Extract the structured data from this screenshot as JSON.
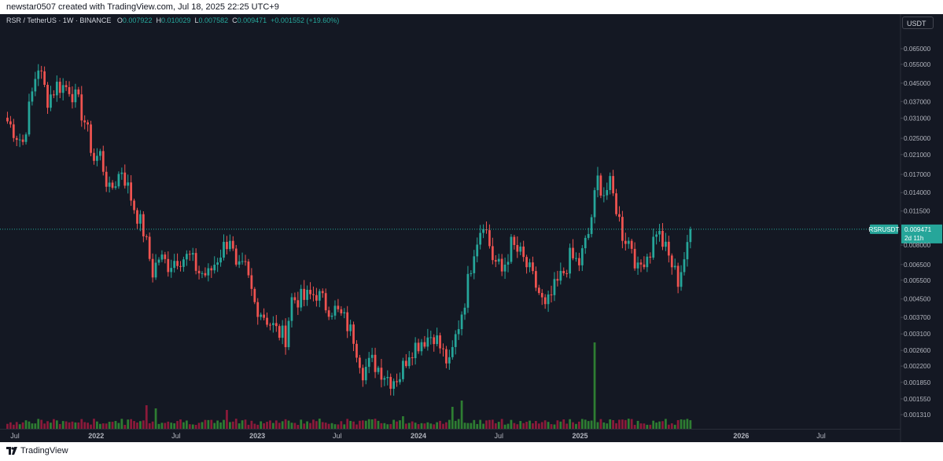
{
  "header": {
    "text": "newstar0507 created with TradingView.com, Jul 18, 2025 22:25 UTC+9"
  },
  "legend": {
    "symbol": "RSR / TetherUS · 1W · BINANCE",
    "o_label": "O",
    "o": "0.007922",
    "h_label": "H",
    "h": "0.010029",
    "l_label": "L",
    "l": "0.007582",
    "c_label": "C",
    "c": "0.009471",
    "change": "+0.001552 (+19.60%)"
  },
  "currency_button": "USDT",
  "last_price": {
    "ticker": "RSRUSDT",
    "price": "0.009471",
    "countdown": "2d 11h"
  },
  "footer": {
    "brand": "TradingView"
  },
  "colors": {
    "up": "#26a69a",
    "down": "#ef5350",
    "background": "#141823",
    "vol_up": "#2e7d32",
    "vol_down": "#8b1a3a"
  },
  "chart_data": {
    "type": "candlestick",
    "interval": "1W",
    "y_scale": "log",
    "y_ticks": [
      "0.065000",
      "0.055000",
      "0.045000",
      "0.037000",
      "0.031000",
      "0.025000",
      "0.021000",
      "0.017000",
      "0.014000",
      "0.011500",
      "0.008000",
      "0.006500",
      "0.005500",
      "0.004500",
      "0.003700",
      "0.003100",
      "0.002600",
      "0.002200",
      "0.001850",
      "0.001550",
      "0.001310"
    ],
    "x_ticks": [
      "Jul",
      "2022",
      "Jul",
      "2023",
      "Jul",
      "2024",
      "Jul",
      "2025",
      "2026",
      "Jul"
    ],
    "x_tick_dates": [
      "2021-07-01",
      "2022-01-01",
      "2022-07-01",
      "2023-01-01",
      "2023-07-01",
      "2024-01-01",
      "2024-07-01",
      "2025-01-01",
      "2026-01-01",
      "2026-07-01"
    ],
    "last_close": 0.009471,
    "path": [
      [
        "2021-06-14",
        0.03
      ],
      [
        "2021-07-05",
        0.026
      ],
      [
        "2021-07-19",
        0.024
      ],
      [
        "2021-08-02",
        0.034
      ],
      [
        "2021-08-16",
        0.048
      ],
      [
        "2021-08-23",
        0.054
      ],
      [
        "2021-08-30",
        0.048
      ],
      [
        "2021-09-13",
        0.038
      ],
      [
        "2021-10-04",
        0.044
      ],
      [
        "2021-11-01",
        0.043
      ],
      [
        "2021-11-22",
        0.036
      ],
      [
        "2021-12-06",
        0.03
      ],
      [
        "2021-12-27",
        0.02
      ],
      [
        "2022-01-10",
        0.021
      ],
      [
        "2022-01-31",
        0.014
      ],
      [
        "2022-02-28",
        0.018
      ],
      [
        "2022-03-28",
        0.012
      ],
      [
        "2022-04-18",
        0.0093
      ],
      [
        "2022-05-09",
        0.006
      ],
      [
        "2022-05-23",
        0.007
      ],
      [
        "2022-06-13",
        0.0065
      ],
      [
        "2022-07-04",
        0.007
      ],
      [
        "2022-08-01",
        0.007
      ],
      [
        "2022-08-22",
        0.006
      ],
      [
        "2022-09-12",
        0.0058
      ],
      [
        "2022-10-03",
        0.007
      ],
      [
        "2022-10-31",
        0.0088
      ],
      [
        "2022-11-14",
        0.006
      ],
      [
        "2022-12-05",
        0.0062
      ],
      [
        "2022-12-26",
        0.0043
      ],
      [
        "2023-01-16",
        0.0038
      ],
      [
        "2023-02-13",
        0.0032
      ],
      [
        "2023-03-06",
        0.003
      ],
      [
        "2023-03-20",
        0.0045
      ],
      [
        "2023-04-17",
        0.0045
      ],
      [
        "2023-05-15",
        0.0048
      ],
      [
        "2023-06-05",
        0.0042
      ],
      [
        "2023-06-26",
        0.004
      ],
      [
        "2023-07-17",
        0.0036
      ],
      [
        "2023-08-07",
        0.003
      ],
      [
        "2023-08-28",
        0.0021
      ],
      [
        "2023-09-18",
        0.0023
      ],
      [
        "2023-10-09",
        0.0021
      ],
      [
        "2023-10-30",
        0.0019
      ],
      [
        "2023-11-20",
        0.002
      ],
      [
        "2023-12-11",
        0.0026
      ],
      [
        "2024-01-08",
        0.0029
      ],
      [
        "2024-02-05",
        0.0031
      ],
      [
        "2024-02-26",
        0.0025
      ],
      [
        "2024-03-11",
        0.0022
      ],
      [
        "2024-03-25",
        0.003
      ],
      [
        "2024-04-15",
        0.0045
      ],
      [
        "2024-05-06",
        0.0078
      ],
      [
        "2024-05-27",
        0.0105
      ],
      [
        "2024-06-17",
        0.007
      ],
      [
        "2024-07-08",
        0.006
      ],
      [
        "2024-07-29",
        0.008
      ],
      [
        "2024-08-19",
        0.0072
      ],
      [
        "2024-09-09",
        0.006
      ],
      [
        "2024-09-30",
        0.0048
      ],
      [
        "2024-10-14",
        0.004
      ],
      [
        "2024-11-04",
        0.005
      ],
      [
        "2024-11-25",
        0.006
      ],
      [
        "2024-12-09",
        0.007
      ],
      [
        "2024-12-30",
        0.0066
      ],
      [
        "2025-01-20",
        0.009
      ],
      [
        "2025-02-10",
        0.016
      ],
      [
        "2025-02-24",
        0.014
      ],
      [
        "2025-03-10",
        0.015
      ],
      [
        "2025-03-24",
        0.012
      ],
      [
        "2025-04-07",
        0.009
      ],
      [
        "2025-04-28",
        0.008
      ],
      [
        "2025-05-12",
        0.006
      ],
      [
        "2025-05-26",
        0.007
      ],
      [
        "2025-06-09",
        0.0075
      ],
      [
        "2025-06-23",
        0.0095
      ],
      [
        "2025-07-07",
        0.0082
      ],
      [
        "2025-07-21",
        0.007
      ],
      [
        "2025-08-11",
        0.0055
      ],
      [
        "2025-08-25",
        0.007
      ],
      [
        "2025-09-08",
        0.0082
      ]
    ],
    "volume_spikes": [
      [
        "2022-04-25",
        3.0
      ],
      [
        "2022-05-16",
        2.6
      ],
      [
        "2022-10-24",
        2.4
      ],
      [
        "2023-11-27",
        1.6
      ],
      [
        "2024-03-18",
        2.8
      ],
      [
        "2024-04-08",
        3.6
      ],
      [
        "2025-02-03",
        11.0
      ]
    ]
  }
}
